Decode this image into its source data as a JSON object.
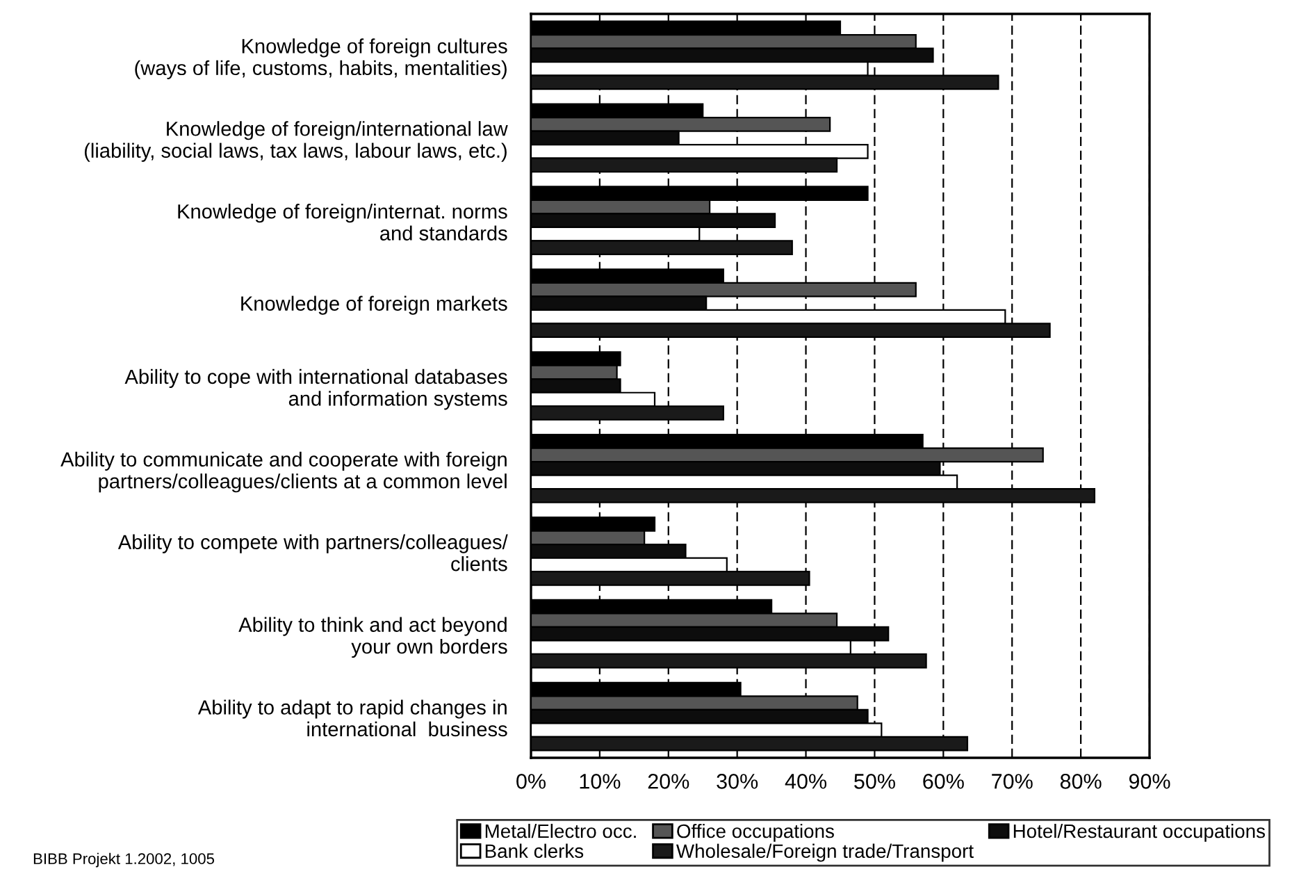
{
  "chart_data": {
    "type": "bar",
    "orientation": "horizontal",
    "categories": [
      "Knowledge of foreign cultures\n(ways of life, customs, habits, mentalities)",
      "Knowledge of foreign/international law\n(liability, social laws, tax laws, labour laws, etc.)",
      "Knowledge of foreign/internat. norms\nand standards",
      "Knowledge of foreign markets",
      "Ability to cope with international databases\nand information systems",
      "Ability to communicate and cooperate with foreign\npartners/colleagues/clients at a common level",
      "Ability to compete with partners/colleagues/\nclients",
      "Ability to think and act beyond\nyour own borders",
      "Ability to adapt to rapid changes in\ninternational  business"
    ],
    "series": [
      {
        "name": "Metal/Electro occ.",
        "color": "#000000",
        "values": [
          45,
          25,
          49,
          28,
          13,
          57,
          18,
          35,
          30.5
        ]
      },
      {
        "name": "Office occupations",
        "color": "#555555",
        "values": [
          56,
          43.5,
          26,
          56,
          12.5,
          74.5,
          16.5,
          44.5,
          47.5
        ]
      },
      {
        "name": "Hotel/Restaurant occupations",
        "color": "#0d0d0d",
        "values": [
          58.5,
          21.5,
          35.5,
          25.5,
          13,
          59.5,
          22.5,
          52,
          49
        ]
      },
      {
        "name": "Bank clerks",
        "color": "#ffffff",
        "values": [
          49,
          49,
          24.5,
          69,
          18,
          62,
          28.5,
          46.5,
          51
        ]
      },
      {
        "name": "Wholesale/Foreign trade/Transport",
        "color": "#1a1a1a",
        "values": [
          68,
          44.5,
          38,
          75.5,
          28,
          82,
          40.5,
          57.5,
          63.5
        ]
      }
    ],
    "xlim": [
      0,
      90
    ],
    "xticks": [
      {
        "value": 0,
        "label": "0%"
      },
      {
        "value": 10,
        "label": "10%"
      },
      {
        "value": 20,
        "label": "20%"
      },
      {
        "value": 30,
        "label": "30%"
      },
      {
        "value": 40,
        "label": "40%"
      },
      {
        "value": 50,
        "label": "50%"
      },
      {
        "value": 60,
        "label": "60%"
      },
      {
        "value": 70,
        "label": "70%"
      },
      {
        "value": 80,
        "label": "80%"
      },
      {
        "value": 90,
        "label": "90%"
      }
    ],
    "grid": "x",
    "legend": "bottom",
    "annotations": [
      "BIBB Projekt 1.2002, 1005"
    ]
  }
}
